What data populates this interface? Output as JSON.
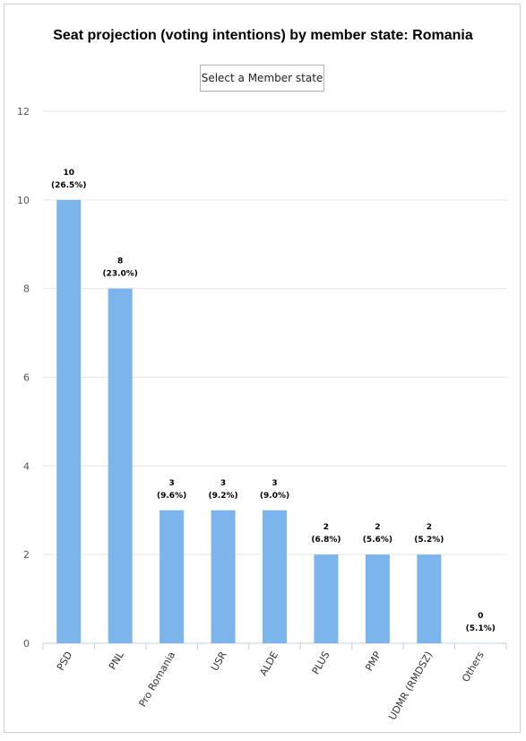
{
  "page": {
    "select_label": "Select a Member state"
  },
  "chart_data": {
    "type": "bar",
    "title": "Seat projection (voting intentions) by member state: Romania",
    "categories": [
      "PSD",
      "PNL",
      "Pro Romania",
      "USR",
      "ALDE",
      "PLUS",
      "PMP",
      "UDMR (RMDSZ)",
      "Others"
    ],
    "values": [
      10,
      8,
      3,
      3,
      3,
      2,
      2,
      2,
      0
    ],
    "percent_labels": [
      "(26.5%)",
      "(23.0%)",
      "(9.6%)",
      "(9.2%)",
      "(9.0%)",
      "(6.8%)",
      "(5.6%)",
      "(5.2%)",
      "(5.1%)"
    ],
    "ylim": [
      0,
      12
    ],
    "yticks": [
      0,
      2,
      4,
      6,
      8,
      10,
      12
    ],
    "grid": true,
    "bar_color": "#7cb5ec",
    "xlabel": "",
    "ylabel": ""
  }
}
